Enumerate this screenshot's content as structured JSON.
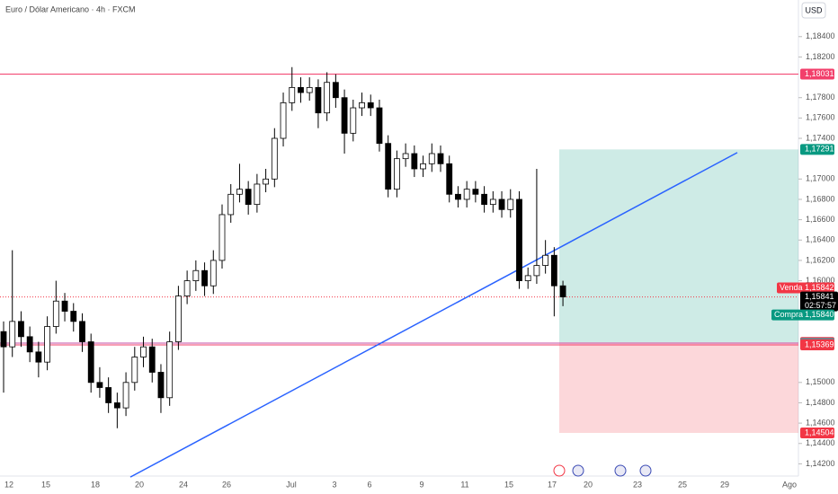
{
  "chart_data": {
    "type": "candlestick",
    "title": "Euro / Dólar Americano · 4h · FXCM",
    "currency": "USD",
    "ylim": [
      1.1408,
      1.1876
    ],
    "yticks": [
      {
        "value": 1.184,
        "label": "1,18400"
      },
      {
        "value": 1.182,
        "label": "1,18200"
      },
      {
        "value": 1.178,
        "label": "1,17800"
      },
      {
        "value": 1.176,
        "label": "1,17600"
      },
      {
        "value": 1.174,
        "label": "1,17400"
      },
      {
        "value": 1.17,
        "label": "1,17000"
      },
      {
        "value": 1.168,
        "label": "1,16800"
      },
      {
        "value": 1.166,
        "label": "1,16600"
      },
      {
        "value": 1.164,
        "label": "1,16400"
      },
      {
        "value": 1.162,
        "label": "1,16200"
      },
      {
        "value": 1.16,
        "label": "1,16000"
      },
      {
        "value": 1.15,
        "label": "1,15000"
      },
      {
        "value": 1.148,
        "label": "1,14800"
      },
      {
        "value": 1.146,
        "label": "1,14600"
      },
      {
        "value": 1.144,
        "label": "1,14400"
      },
      {
        "value": 1.142,
        "label": "1,14200"
      }
    ],
    "x_labels": [
      "12",
      "15",
      "18",
      "20",
      "24",
      "26",
      "Jul",
      "3",
      "6",
      "9",
      "11",
      "15",
      "17",
      "20",
      "23",
      "25",
      "29",
      "Ago"
    ],
    "up_color": "#ffffff",
    "down_color": "#000000",
    "open": [
      1.155,
      1.1535,
      1.156,
      1.1545,
      1.153,
      1.152,
      1.1555,
      1.158,
      1.157,
      1.156,
      1.154,
      1.15,
      1.1495,
      1.148,
      1.1475,
      1.15,
      1.1525,
      1.1535,
      1.151,
      1.1485,
      1.154,
      1.1585,
      1.16,
      1.161,
      1.1595,
      1.162,
      1.1665,
      1.1685,
      1.169,
      1.1675,
      1.1695,
      1.17,
      1.174,
      1.1775,
      1.179,
      1.1785,
      1.179,
      1.1765,
      1.1795,
      1.178,
      1.1745,
      1.177,
      1.1775,
      1.177,
      1.1735,
      1.169,
      1.172,
      1.1725,
      1.171,
      1.1715,
      1.1725,
      1.1715,
      1.1685,
      1.168,
      1.169,
      1.1685,
      1.1675,
      1.168,
      1.167,
      1.168,
      1.16,
      1.1605,
      1.1615,
      1.1625,
      1.1595
    ],
    "high": [
      1.156,
      1.163,
      1.157,
      1.1555,
      1.154,
      1.1565,
      1.16,
      1.1588,
      1.1578,
      1.1568,
      1.1548,
      1.1515,
      1.1505,
      1.149,
      1.151,
      1.1535,
      1.1545,
      1.1543,
      1.1518,
      1.155,
      1.1595,
      1.161,
      1.162,
      1.1618,
      1.163,
      1.1675,
      1.1695,
      1.1715,
      1.1698,
      1.1705,
      1.171,
      1.175,
      1.1785,
      1.181,
      1.18,
      1.18,
      1.1798,
      1.1805,
      1.1803,
      1.1788,
      1.1778,
      1.1785,
      1.1783,
      1.1778,
      1.1743,
      1.1728,
      1.1735,
      1.1733,
      1.1723,
      1.1735,
      1.1733,
      1.1723,
      1.1693,
      1.1698,
      1.1698,
      1.1693,
      1.1688,
      1.1688,
      1.169,
      1.1688,
      1.1613,
      1.171,
      1.164,
      1.1633,
      1.16
    ],
    "low": [
      1.149,
      1.1525,
      1.1535,
      1.152,
      1.1505,
      1.1512,
      1.1548,
      1.156,
      1.155,
      1.153,
      1.149,
      1.1485,
      1.147,
      1.1455,
      1.1467,
      1.1492,
      1.1515,
      1.15,
      1.147,
      1.1477,
      1.1532,
      1.1577,
      1.159,
      1.1585,
      1.1587,
      1.1612,
      1.1657,
      1.1677,
      1.1665,
      1.1667,
      1.1687,
      1.1692,
      1.1732,
      1.1767,
      1.1775,
      1.1777,
      1.175,
      1.1757,
      1.177,
      1.1725,
      1.1737,
      1.1762,
      1.1762,
      1.1727,
      1.1682,
      1.1682,
      1.1712,
      1.1702,
      1.1702,
      1.1707,
      1.1707,
      1.1677,
      1.1672,
      1.1672,
      1.1677,
      1.1667,
      1.1667,
      1.1662,
      1.1662,
      1.1592,
      1.1592,
      1.1597,
      1.1607,
      1.1565,
      1.1575
    ],
    "close": [
      1.1535,
      1.156,
      1.1545,
      1.153,
      1.152,
      1.1555,
      1.158,
      1.157,
      1.156,
      1.154,
      1.15,
      1.1495,
      1.148,
      1.1475,
      1.15,
      1.1525,
      1.1535,
      1.151,
      1.1485,
      1.154,
      1.1585,
      1.16,
      1.161,
      1.1595,
      1.162,
      1.1665,
      1.1685,
      1.169,
      1.1675,
      1.1695,
      1.17,
      1.174,
      1.1775,
      1.179,
      1.1785,
      1.179,
      1.1765,
      1.1795,
      1.178,
      1.1745,
      1.177,
      1.1775,
      1.177,
      1.1735,
      1.169,
      1.172,
      1.1725,
      1.171,
      1.1715,
      1.1725,
      1.1715,
      1.1685,
      1.168,
      1.169,
      1.1685,
      1.1675,
      1.168,
      1.167,
      1.168,
      1.16,
      1.1605,
      1.1615,
      1.1625,
      1.1595,
      1.15841
    ],
    "resistance": {
      "value": 1.18031,
      "label": "1,18031",
      "color": "#f23f6b"
    },
    "support_lines": [
      {
        "value": 1.15387,
        "label": "1,15387",
        "color": "#c64ea5"
      },
      {
        "value": 1.15369,
        "label": "1,15369",
        "color": "#f23f6b"
      }
    ],
    "position": {
      "target": {
        "value": 1.17291,
        "label": "1,17291"
      },
      "entry": {
        "value": 1.15393,
        "label": "1,15393"
      },
      "stop": {
        "value": 1.14504,
        "label": "1,14504"
      },
      "profit_color": "#089981",
      "loss_color": "#f23645"
    },
    "trendline": {
      "values": [
        1.1407,
        1.1726
      ],
      "color": "#2962ff"
    },
    "last": {
      "value": 1.15841,
      "label": "1,15841"
    },
    "countdown": "02:57:57",
    "sell": {
      "text": "Venda",
      "value": 1.15842,
      "label": "1,15842"
    },
    "buy": {
      "text": "Compra",
      "value": 1.1584,
      "label": "1,15840"
    }
  }
}
